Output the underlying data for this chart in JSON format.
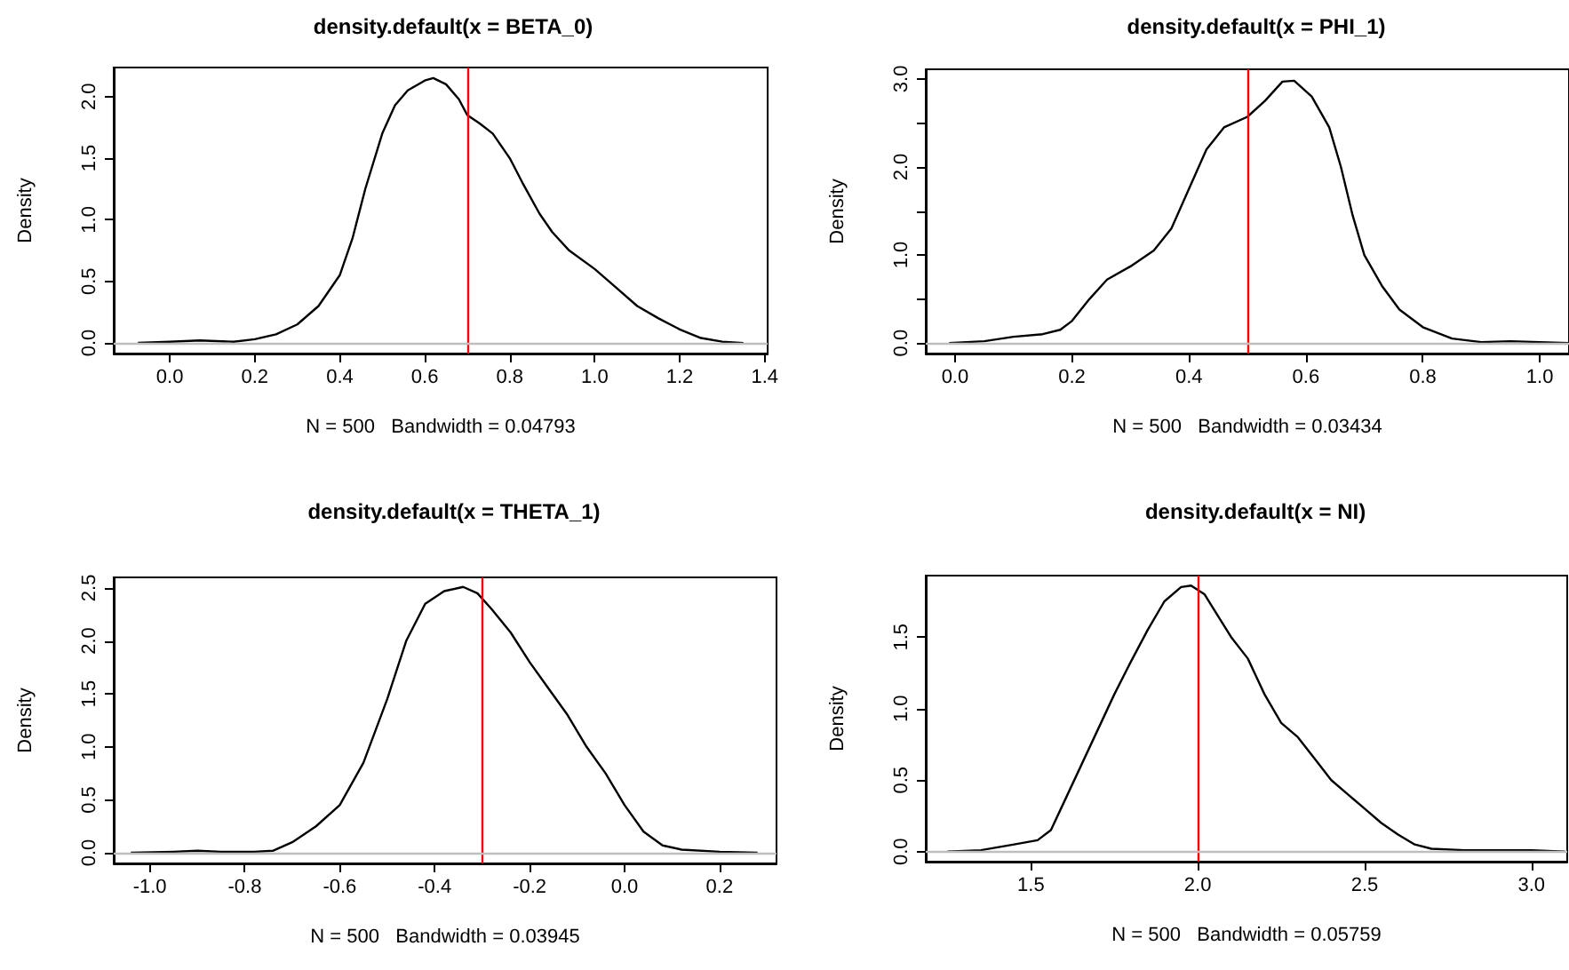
{
  "chart_data": [
    {
      "type": "line",
      "title": "density.default(x = BETA_0)",
      "xlabel": "N = 500   Bandwidth = 0.04793",
      "ylabel": "Density",
      "color": "#000000",
      "marker": "none",
      "x": [
        -0.075,
        0.0,
        0.07,
        0.15,
        0.2,
        0.25,
        0.3,
        0.35,
        0.4,
        0.43,
        0.46,
        0.5,
        0.53,
        0.56,
        0.6,
        0.62,
        0.65,
        0.68,
        0.7,
        0.73,
        0.76,
        0.8,
        0.83,
        0.87,
        0.9,
        0.94,
        1.0,
        1.05,
        1.1,
        1.15,
        1.2,
        1.25,
        1.3,
        1.35
      ],
      "values": [
        0,
        0.01,
        0.02,
        0.01,
        0.03,
        0.07,
        0.15,
        0.3,
        0.55,
        0.85,
        1.25,
        1.7,
        1.93,
        2.05,
        2.13,
        2.15,
        2.1,
        1.98,
        1.85,
        1.78,
        1.7,
        1.5,
        1.3,
        1.05,
        0.9,
        0.75,
        0.6,
        0.45,
        0.3,
        0.2,
        0.11,
        0.04,
        0.01,
        0
      ],
      "xlim": [
        -0.132,
        1.407
      ],
      "ylim": [
        -0.086,
        2.236
      ],
      "xticks": [
        {
          "value": 0,
          "label": "0.0"
        },
        0.2,
        0.4,
        0.6,
        0.8,
        {
          "value": 1,
          "label": "1.0"
        },
        1.2,
        1.4
      ],
      "yticks": [
        {
          "value": 0,
          "label": "0.0"
        },
        0.5,
        {
          "value": 1,
          "label": "1.0"
        },
        1.5,
        {
          "value": 2,
          "label": "2.0"
        }
      ],
      "ref_lines": [
        {
          "axis": "x",
          "value": 0.7,
          "color": "#ff0000"
        },
        {
          "axis": "y",
          "value": 0,
          "color": "#bebebe"
        }
      ]
    },
    {
      "type": "line",
      "title": "density.default(x = PHI_1)",
      "xlabel": "N = 500   Bandwidth = 0.03434",
      "ylabel": "Density",
      "color": "#000000",
      "marker": "none",
      "x": [
        -0.01,
        0.05,
        0.1,
        0.15,
        0.18,
        0.2,
        0.23,
        0.26,
        0.3,
        0.34,
        0.37,
        0.4,
        0.43,
        0.46,
        0.5,
        0.53,
        0.56,
        0.58,
        0.61,
        0.64,
        0.66,
        0.68,
        0.7,
        0.73,
        0.76,
        0.8,
        0.85,
        0.9,
        0.95,
        1.0,
        1.05
      ],
      "values": [
        0,
        0.02,
        0.07,
        0.1,
        0.15,
        0.25,
        0.5,
        0.72,
        0.87,
        1.05,
        1.3,
        1.75,
        2.2,
        2.45,
        2.57,
        2.75,
        2.97,
        2.98,
        2.8,
        2.45,
        2.0,
        1.45,
        1.0,
        0.65,
        0.38,
        0.18,
        0.05,
        0.01,
        0.02,
        0.01,
        0
      ],
      "xlim": [
        -0.05,
        1.05
      ],
      "ylim": [
        -0.12,
        3.11
      ],
      "xticks": [
        {
          "value": 0,
          "label": "0.0"
        },
        0.2,
        0.4,
        0.6,
        0.8,
        {
          "value": 1,
          "label": "1.0"
        }
      ],
      "yticks": [
        {
          "value": 0,
          "label": "0.0"
        },
        {
          "value": 0.5,
          "label": null
        },
        {
          "value": 1,
          "label": "1.0"
        },
        {
          "value": 1.5,
          "label": null
        },
        {
          "value": 2,
          "label": "2.0"
        },
        {
          "value": 2.5,
          "label": null
        },
        {
          "value": 3,
          "label": "3.0"
        }
      ],
      "ref_lines": [
        {
          "axis": "x",
          "value": 0.5,
          "color": "#ff0000"
        },
        {
          "axis": "y",
          "value": 0,
          "color": "#bebebe"
        }
      ]
    },
    {
      "type": "line",
      "title": "density.default(x = THETA_1)",
      "xlabel": "N = 500   Bandwidth = 0.03945",
      "ylabel": "Density",
      "color": "#000000",
      "marker": "none",
      "x": [
        -1.04,
        -0.95,
        -0.9,
        -0.85,
        -0.78,
        -0.74,
        -0.7,
        -0.65,
        -0.6,
        -0.55,
        -0.5,
        -0.46,
        -0.42,
        -0.38,
        -0.34,
        -0.31,
        -0.28,
        -0.24,
        -0.2,
        -0.16,
        -0.12,
        -0.08,
        -0.04,
        0.0,
        0.04,
        0.08,
        0.12,
        0.2,
        0.28
      ],
      "values": [
        0,
        0.01,
        0.02,
        0.01,
        0.01,
        0.02,
        0.1,
        0.25,
        0.45,
        0.85,
        1.45,
        2.0,
        2.35,
        2.47,
        2.51,
        2.45,
        2.3,
        2.08,
        1.8,
        1.55,
        1.3,
        1.0,
        0.75,
        0.45,
        0.2,
        0.07,
        0.03,
        0.01,
        0
      ],
      "xlim": [
        -1.076,
        0.32
      ],
      "ylim": [
        -0.1,
        2.6
      ],
      "xticks": [
        {
          "value": -1,
          "label": "-1.0"
        },
        -0.8,
        -0.6,
        -0.4,
        -0.2,
        {
          "value": 0,
          "label": "0.0"
        },
        0.2
      ],
      "yticks": [
        {
          "value": 0,
          "label": "0.0"
        },
        0.5,
        {
          "value": 1,
          "label": "1.0"
        },
        1.5,
        {
          "value": 2,
          "label": "2.0"
        },
        2.5
      ],
      "ref_lines": [
        {
          "axis": "x",
          "value": -0.3,
          "color": "#ff0000"
        },
        {
          "axis": "y",
          "value": 0,
          "color": "#bebebe"
        }
      ]
    },
    {
      "type": "line",
      "title": "density.default(x = NI)",
      "xlabel": "N = 500   Bandwidth = 0.05759",
      "ylabel": "Density",
      "color": "#000000",
      "marker": "none",
      "x": [
        1.25,
        1.35,
        1.45,
        1.52,
        1.56,
        1.6,
        1.65,
        1.7,
        1.75,
        1.8,
        1.85,
        1.9,
        1.95,
        1.98,
        2.02,
        2.06,
        2.1,
        2.15,
        2.2,
        2.25,
        2.3,
        2.35,
        2.4,
        2.45,
        2.5,
        2.55,
        2.6,
        2.65,
        2.7,
        2.8,
        2.9,
        3.0,
        3.1
      ],
      "values": [
        0,
        0.01,
        0.05,
        0.08,
        0.15,
        0.35,
        0.6,
        0.85,
        1.1,
        1.33,
        1.55,
        1.75,
        1.85,
        1.86,
        1.8,
        1.65,
        1.5,
        1.35,
        1.1,
        0.9,
        0.8,
        0.65,
        0.5,
        0.4,
        0.3,
        0.2,
        0.12,
        0.05,
        0.02,
        0.01,
        0.01,
        0.01,
        0
      ],
      "xlim": [
        1.185,
        3.107
      ],
      "ylim": [
        -0.07,
        1.93
      ],
      "xticks": [
        1.5,
        {
          "value": 2,
          "label": "2.0"
        },
        2.5,
        {
          "value": 3,
          "label": "3.0"
        }
      ],
      "yticks": [
        {
          "value": 0,
          "label": "0.0"
        },
        0.5,
        {
          "value": 1,
          "label": "1.0"
        },
        1.5
      ],
      "ref_lines": [
        {
          "axis": "x",
          "value": 2,
          "color": "#ff0000"
        },
        {
          "axis": "y",
          "value": 0,
          "color": "#bebebe"
        }
      ]
    }
  ]
}
